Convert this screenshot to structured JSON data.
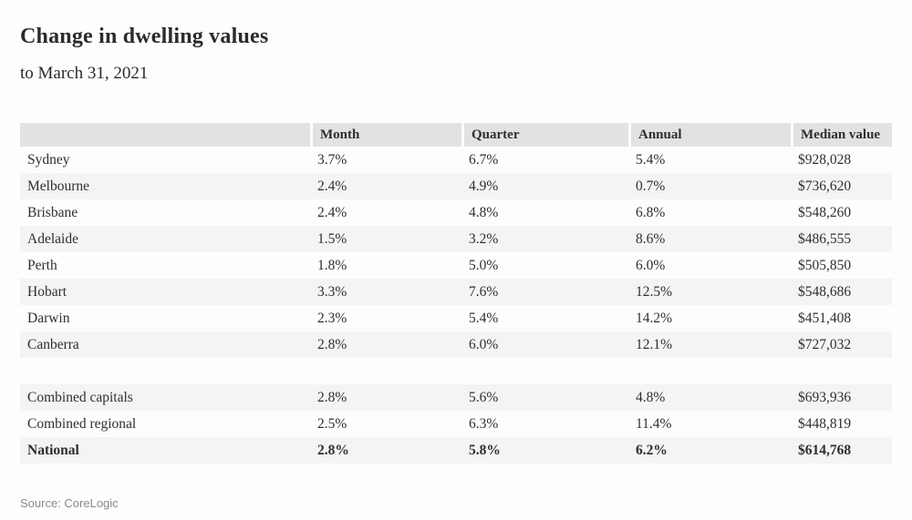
{
  "chart_data": {
    "type": "table",
    "title": "Change in dwelling values",
    "subtitle": "to March 31, 2021",
    "source": "Source: CoreLogic",
    "columns": [
      "",
      "Month",
      "Quarter",
      "Annual",
      "Median value"
    ],
    "rows": [
      {
        "region": "Sydney",
        "month": "3.7%",
        "quarter": "6.7%",
        "annual": "5.4%",
        "median_value": "$928,028"
      },
      {
        "region": "Melbourne",
        "month": "2.4%",
        "quarter": "4.9%",
        "annual": "0.7%",
        "median_value": "$736,620"
      },
      {
        "region": "Brisbane",
        "month": "2.4%",
        "quarter": "4.8%",
        "annual": "6.8%",
        "median_value": "$548,260"
      },
      {
        "region": "Adelaide",
        "month": "1.5%",
        "quarter": "3.2%",
        "annual": "8.6%",
        "median_value": "$486,555"
      },
      {
        "region": "Perth",
        "month": "1.8%",
        "quarter": "5.0%",
        "annual": "6.0%",
        "median_value": "$505,850"
      },
      {
        "region": "Hobart",
        "month": "3.3%",
        "quarter": "7.6%",
        "annual": "12.5%",
        "median_value": "$548,686"
      },
      {
        "region": "Darwin",
        "month": "2.3%",
        "quarter": "5.4%",
        "annual": "14.2%",
        "median_value": "$451,408"
      },
      {
        "region": "Canberra",
        "month": "2.8%",
        "quarter": "6.0%",
        "annual": "12.1%",
        "median_value": "$727,032"
      },
      {
        "region": "Combined capitals",
        "month": "2.8%",
        "quarter": "5.6%",
        "annual": "4.8%",
        "median_value": "$693,936"
      },
      {
        "region": "Combined regional",
        "month": "2.5%",
        "quarter": "6.3%",
        "annual": "11.4%",
        "median_value": "$448,819"
      },
      {
        "region": "National",
        "month": "2.8%",
        "quarter": "5.8%",
        "annual": "6.2%",
        "median_value": "$614,768"
      }
    ],
    "bold_rows": [
      "National"
    ],
    "group_break_after": "Canberra",
    "layout": {
      "legend": "none",
      "grid": "off",
      "row_striping": "alternate"
    },
    "colors": {
      "page_bg": "#fdfdfd",
      "header_bg": "#e2e2e2",
      "row_alt_bg": "#f4f4f4",
      "text": "#2f2f2f",
      "source_text": "#8a8a8a"
    }
  }
}
